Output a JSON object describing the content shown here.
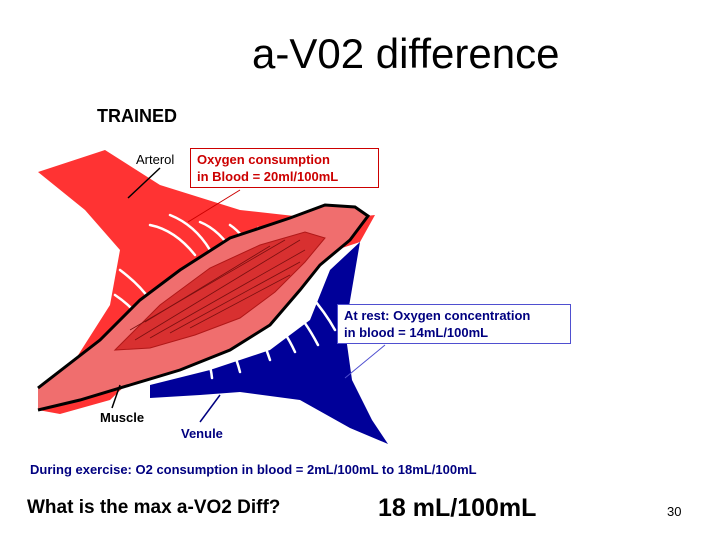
{
  "title": "a-V02 difference",
  "diagram": {
    "heading": "TRAINED",
    "labels": {
      "arterol": "Arterol",
      "muscle": "Muscle",
      "venule": "Venule"
    },
    "callout_arterial": {
      "line1": "Oxygen consumption",
      "line2": "in Blood =  20ml/100mL"
    },
    "callout_venous": {
      "line1": "At rest: Oxygen concentration",
      "line2": "in blood = 14mL/100mL"
    },
    "colors": {
      "artery": "#ff3333",
      "muscle": "#f06e6e",
      "muscle_dark": "#d83030",
      "vein": "#000099",
      "outline": "#000000"
    }
  },
  "exercise_note": "During exercise: O2 consumption in blood = 2mL/100mL to 18mL/100mL",
  "question": "What is the max a-VO2 Diff?",
  "answer": "18 mL/100mL",
  "page_number": "30"
}
